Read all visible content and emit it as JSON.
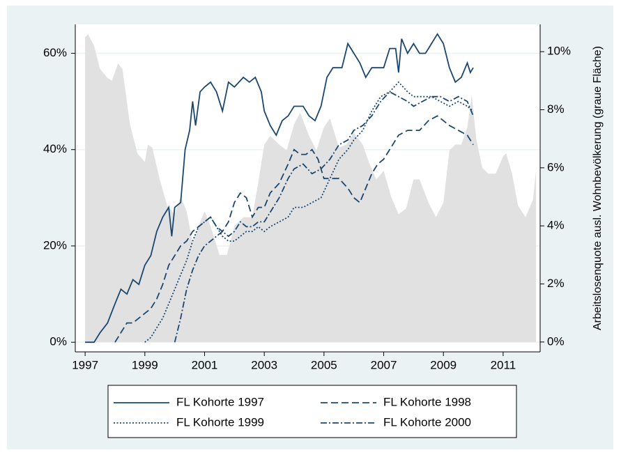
{
  "chart_data": {
    "type": "line",
    "y2label": "Arbeitslosenquote ausl. Wohnbevölkerung (graue Fläche)",
    "xlim": [
      1996.67,
      2012.24
    ],
    "xticks": [
      1997,
      1999,
      2001,
      2003,
      2005,
      2007,
      2009,
      2011
    ],
    "ylim": [
      -2,
      66
    ],
    "yticks": [
      {
        "value": 0,
        "label": "0%"
      },
      {
        "value": 20,
        "label": "20%"
      },
      {
        "value": 40,
        "label": "40%"
      },
      {
        "value": 60,
        "label": "60%"
      }
    ],
    "y2lim": [
      -0.34,
      10.94
    ],
    "y2ticks": [
      {
        "value": 0,
        "label": "0%"
      },
      {
        "value": 2,
        "label": "2%"
      },
      {
        "value": 4,
        "label": "4%"
      },
      {
        "value": 6,
        "label": "6%"
      },
      {
        "value": 8,
        "label": "8%"
      },
      {
        "value": 10,
        "label": "10%"
      }
    ],
    "grid": true,
    "legend": "bottom",
    "series": [
      {
        "type": "area",
        "axis": "y2",
        "color": "#e1e1e1",
        "x": [
          1997.0,
          1997.1,
          1997.3,
          1997.5,
          1997.75,
          1997.9,
          1998.1,
          1998.25,
          1998.5,
          1998.75,
          1999.0,
          1999.1,
          1999.25,
          1999.5,
          1999.75,
          2000.0,
          2000.2,
          2000.4,
          2000.6,
          2000.8,
          2001.0,
          2001.2,
          2001.5,
          2001.75,
          2002.0,
          2002.3,
          2002.6,
          2002.8,
          2003.0,
          2003.2,
          2003.5,
          2003.75,
          2004.0,
          2004.2,
          2004.5,
          2004.75,
          2005.0,
          2005.2,
          2005.5,
          2005.75,
          2006.0,
          2006.3,
          2006.5,
          2006.75,
          2007.0,
          2007.25,
          2007.5,
          2007.75,
          2008.0,
          2008.2,
          2008.5,
          2008.75,
          2009.0,
          2009.2,
          2009.4,
          2009.6,
          2009.8,
          2009.95,
          2010.1,
          2010.3,
          2010.5,
          2010.75,
          2011.0,
          2011.1,
          2011.3,
          2011.5,
          2011.75,
          2012.0,
          2012.1
        ],
        "values": [
          10.5,
          10.6,
          10.2,
          9.4,
          9.1,
          9.0,
          9.6,
          9.4,
          7.5,
          6.5,
          6.2,
          6.8,
          6.7,
          5.6,
          4.7,
          4.4,
          5.0,
          4.5,
          3.4,
          4.0,
          4.5,
          4.0,
          3.0,
          3.0,
          4.0,
          4.3,
          4.3,
          5.5,
          6.8,
          7.1,
          6.8,
          6.6,
          7.5,
          7.9,
          7.1,
          6.6,
          7.4,
          7.7,
          6.7,
          6.8,
          7.2,
          6.8,
          6.2,
          5.6,
          5.9,
          5.0,
          4.4,
          4.6,
          5.6,
          5.6,
          4.8,
          4.3,
          4.8,
          6.6,
          6.8,
          6.8,
          7.4,
          8.5,
          7.0,
          6.0,
          5.8,
          5.8,
          6.4,
          6.5,
          5.8,
          4.7,
          4.3,
          4.9,
          5.9
        ]
      },
      {
        "name": "FL Kohorte 1997",
        "color": "#1a476f",
        "style": "solid",
        "x": [
          1997.0,
          1997.3,
          1997.5,
          1997.75,
          1998.0,
          1998.2,
          1998.4,
          1998.6,
          1998.8,
          1999.0,
          1999.2,
          1999.4,
          1999.6,
          1999.8,
          1999.9,
          2000.0,
          2000.2,
          2000.35,
          2000.5,
          2000.6,
          2000.7,
          2000.85,
          2001.0,
          2001.2,
          2001.4,
          2001.6,
          2001.8,
          2002.0,
          2002.3,
          2002.5,
          2002.7,
          2002.9,
          2003.0,
          2003.2,
          2003.4,
          2003.6,
          2003.8,
          2004.0,
          2004.3,
          2004.5,
          2004.7,
          2004.9,
          2005.1,
          2005.3,
          2005.6,
          2005.8,
          2006.0,
          2006.2,
          2006.4,
          2006.6,
          2006.8,
          2007.0,
          2007.2,
          2007.4,
          2007.5,
          2007.6,
          2007.8,
          2008.0,
          2008.2,
          2008.4,
          2008.6,
          2008.8,
          2009.0,
          2009.2,
          2009.4,
          2009.6,
          2009.8,
          2009.9,
          2010.0
        ],
        "values": [
          0,
          0,
          2,
          4,
          8,
          11,
          10,
          13,
          12,
          16,
          18,
          23,
          26,
          28,
          22,
          28,
          29,
          40,
          44,
          50,
          45,
          52,
          53,
          54,
          52,
          48,
          54,
          53,
          55,
          54,
          55,
          52,
          48,
          45,
          43,
          46,
          47,
          49,
          49,
          47,
          46,
          49,
          55,
          57,
          57,
          62,
          60,
          58,
          55,
          57,
          57,
          57,
          61,
          61,
          56,
          63,
          60,
          62,
          60,
          60,
          62,
          64,
          62,
          57,
          54,
          55,
          58,
          56,
          57
        ]
      },
      {
        "name": "FL Kohorte 1998",
        "color": "#1a476f",
        "style": "dash",
        "x": [
          1998.0,
          1998.2,
          1998.4,
          1998.6,
          1998.8,
          1999.0,
          1999.2,
          1999.4,
          1999.6,
          1999.8,
          2000.0,
          2000.2,
          2000.4,
          2000.6,
          2000.8,
          2001.0,
          2001.2,
          2001.4,
          2001.6,
          2001.8,
          2002.0,
          2002.2,
          2002.4,
          2002.6,
          2002.8,
          2003.0,
          2003.2,
          2003.5,
          2003.8,
          2004.0,
          2004.2,
          2004.4,
          2004.6,
          2004.8,
          2005.0,
          2005.2,
          2005.5,
          2005.8,
          2006.0,
          2006.2,
          2006.4,
          2006.6,
          2006.8,
          2007.0,
          2007.2,
          2007.5,
          2007.8,
          2008.0,
          2008.2,
          2008.5,
          2008.8,
          2009.0,
          2009.2,
          2009.5,
          2009.8,
          2010.0
        ],
        "values": [
          0,
          2,
          4,
          4,
          5,
          6,
          7,
          9,
          12,
          16,
          18,
          20,
          21,
          23,
          24,
          25,
          26,
          24,
          23,
          25,
          29,
          31,
          30,
          26,
          28,
          28,
          31,
          33,
          37,
          40,
          39,
          39,
          40,
          38,
          34,
          34,
          34,
          32,
          30,
          29,
          32,
          35,
          37,
          38,
          40,
          43,
          44,
          44,
          44,
          46,
          47,
          46,
          45,
          44,
          43,
          41
        ]
      },
      {
        "name": "FL Kohorte 1999",
        "color": "#1a476f",
        "style": "dot",
        "x": [
          1999.0,
          1999.2,
          1999.4,
          1999.6,
          1999.8,
          2000.0,
          2000.2,
          2000.4,
          2000.6,
          2000.8,
          2001.0,
          2001.2,
          2001.4,
          2001.6,
          2001.8,
          2002.0,
          2002.2,
          2002.4,
          2002.6,
          2002.8,
          2003.0,
          2003.2,
          2003.5,
          2003.8,
          2004.0,
          2004.3,
          2004.6,
          2004.9,
          2005.2,
          2005.5,
          2005.8,
          2006.0,
          2006.3,
          2006.6,
          2006.9,
          2007.2,
          2007.5,
          2007.8,
          2008.0,
          2008.3,
          2008.6,
          2008.9,
          2009.2,
          2009.5,
          2009.8,
          2010.0
        ],
        "values": [
          0,
          1,
          3,
          5,
          8,
          11,
          14,
          17,
          21,
          24,
          25,
          26,
          24,
          22,
          21,
          21,
          22,
          23,
          23,
          24,
          23,
          24,
          25,
          26,
          28,
          28,
          29,
          30,
          34,
          38,
          40,
          42,
          44,
          48,
          51,
          52,
          54,
          52,
          51,
          51,
          51,
          50,
          49,
          50,
          49,
          48
        ]
      },
      {
        "name": "FL Kohorte 2000",
        "color": "#1a476f",
        "style": "dashdot",
        "x": [
          2000.0,
          2000.2,
          2000.4,
          2000.6,
          2000.8,
          2001.0,
          2001.2,
          2001.4,
          2001.6,
          2001.8,
          2002.0,
          2002.2,
          2002.4,
          2002.6,
          2002.8,
          2003.0,
          2003.2,
          2003.5,
          2003.8,
          2004.0,
          2004.3,
          2004.6,
          2004.9,
          2005.2,
          2005.5,
          2005.8,
          2006.0,
          2006.3,
          2006.6,
          2006.9,
          2007.2,
          2007.5,
          2007.8,
          2008.0,
          2008.3,
          2008.6,
          2008.9,
          2009.2,
          2009.5,
          2009.8,
          2010.0
        ],
        "values": [
          0,
          5,
          11,
          15,
          18,
          20,
          21,
          22,
          23,
          22,
          23,
          25,
          24,
          24,
          25,
          25,
          27,
          30,
          34,
          36,
          37,
          35,
          36,
          38,
          41,
          42,
          44,
          45,
          47,
          50,
          52,
          51,
          50,
          49,
          50,
          51,
          51,
          50,
          51,
          50,
          47
        ]
      }
    ]
  }
}
